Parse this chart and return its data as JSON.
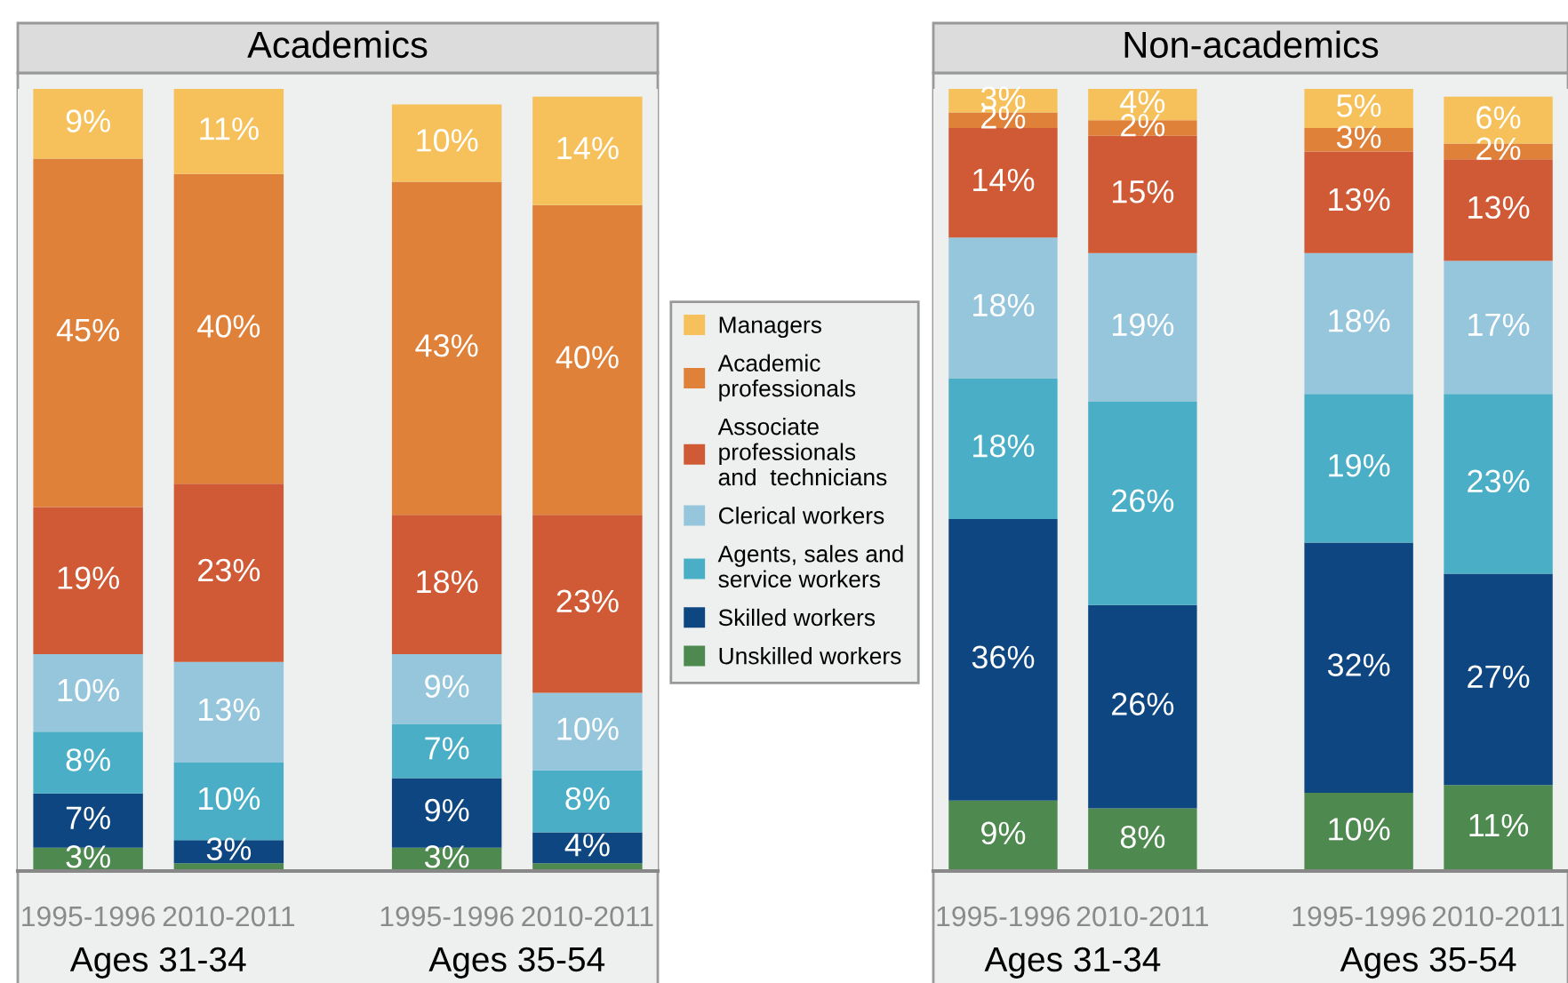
{
  "chart_data": [
    {
      "type": "bar",
      "stacked": true,
      "title": "Academics",
      "categories": [
        "1995-1996",
        "2010-2011",
        "1995-1996",
        "2010-2011"
      ],
      "annotations": [
        "Ages 31-34",
        "Ages 35-54"
      ],
      "legend": "right",
      "grid": false,
      "series": [
        {
          "name": "Unskilled workers",
          "color": "#4e8a4f",
          "values": [
            3,
            1,
            3,
            1
          ],
          "value_labels": [
            "3%",
            null,
            "3%",
            null
          ]
        },
        {
          "name": "Skilled workers",
          "color": "#0d4680",
          "values": [
            7,
            3,
            9,
            4
          ],
          "value_labels": [
            "7%",
            "3%",
            "9%",
            "4%"
          ]
        },
        {
          "name": "Agents, sales and\nservice workers",
          "color": "#4aaec6",
          "values": [
            8,
            10,
            7,
            8
          ],
          "value_labels": [
            "8%",
            "10%",
            "7%",
            "8%"
          ]
        },
        {
          "name": "Clerical workers",
          "color": "#96c6dc",
          "values": [
            10,
            13,
            9,
            10
          ],
          "value_labels": [
            "10%",
            "13%",
            "9%",
            "10%"
          ]
        },
        {
          "name": "Associate\nprofessionals\nand  technicians",
          "color": "#d05a35",
          "values": [
            19,
            23,
            18,
            23
          ],
          "value_labels": [
            "19%",
            "23%",
            "18%",
            "23%"
          ]
        },
        {
          "name": "Academic\nprofessionals",
          "color": "#e0813a",
          "values": [
            45,
            40,
            43,
            40
          ],
          "value_labels": [
            "45%",
            "40%",
            "43%",
            "40%"
          ]
        },
        {
          "name": "Managers",
          "color": "#f6c15b",
          "values": [
            9,
            11,
            10,
            14
          ],
          "value_labels": [
            "9%",
            "11%",
            "10%",
            "14%"
          ]
        }
      ]
    },
    {
      "type": "bar",
      "stacked": true,
      "title": "Non-academics",
      "categories": [
        "1995-1996",
        "2010-2011",
        "1995-1996",
        "2010-2011"
      ],
      "annotations": [
        "Ages 31-34",
        "Ages 35-54"
      ],
      "grid": false,
      "series": [
        {
          "color": "#4e8a4f",
          "values": [
            9,
            8,
            10,
            11
          ],
          "value_labels": [
            "9%",
            "8%",
            "10%",
            "11%"
          ]
        },
        {
          "color": "#0d4680",
          "values": [
            36,
            26,
            32,
            27
          ],
          "value_labels": [
            "36%",
            "26%",
            "32%",
            "27%"
          ]
        },
        {
          "color": "#4aaec6",
          "values": [
            18,
            26,
            19,
            23
          ],
          "value_labels": [
            "18%",
            "26%",
            "19%",
            "23%"
          ]
        },
        {
          "color": "#96c6dc",
          "values": [
            18,
            19,
            18,
            17
          ],
          "value_labels": [
            "18%",
            "19%",
            "18%",
            "17%"
          ]
        },
        {
          "color": "#d05a35",
          "values": [
            14,
            15,
            13,
            13
          ],
          "value_labels": [
            "14%",
            "15%",
            "13%",
            "13%"
          ]
        },
        {
          "color": "#e0813a",
          "values": [
            2,
            2,
            3,
            2
          ],
          "value_labels": [
            "2%",
            "2%",
            "3%",
            "2%"
          ]
        },
        {
          "color": "#f6c15b",
          "values": [
            3,
            4,
            5,
            6
          ],
          "value_labels": [
            "3%",
            "4%",
            "5%",
            "6%"
          ]
        }
      ]
    }
  ]
}
